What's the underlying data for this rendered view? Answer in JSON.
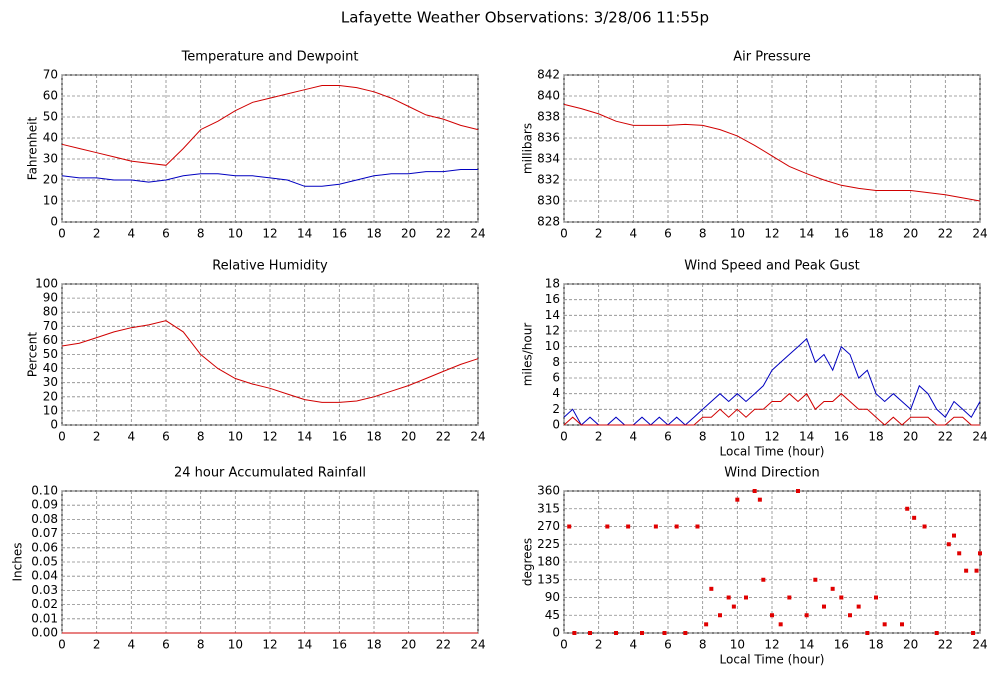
{
  "title": "Lafayette Weather Observations: 3/28/06 11:55p",
  "chart_data": [
    {
      "type": "line",
      "title": "Temperature and Dewpoint",
      "ylabel": "Fahrenheit",
      "x": [
        0,
        1,
        2,
        3,
        4,
        5,
        6,
        7,
        8,
        9,
        10,
        11,
        12,
        13,
        14,
        15,
        16,
        17,
        18,
        19,
        20,
        21,
        22,
        23,
        24
      ],
      "series": [
        {
          "color": "#d00000",
          "values": [
            37,
            35,
            33,
            31,
            29,
            28,
            27,
            35,
            44,
            48,
            53,
            57,
            59,
            61,
            63,
            65,
            65,
            64,
            62,
            59,
            55,
            51,
            49,
            46,
            44
          ]
        },
        {
          "color": "#0000c0",
          "values": [
            22,
            21,
            21,
            20,
            20,
            19,
            20,
            22,
            23,
            23,
            22,
            22,
            21,
            20,
            17,
            17,
            18,
            20,
            22,
            23,
            23,
            24,
            24,
            25,
            25
          ]
        }
      ],
      "xlim": [
        0,
        24
      ],
      "xticks": [
        0,
        2,
        4,
        6,
        8,
        10,
        12,
        14,
        16,
        18,
        20,
        22,
        24
      ],
      "ylim": [
        0,
        70
      ],
      "yticks": [
        0,
        10,
        20,
        30,
        40,
        50,
        60,
        70
      ],
      "grid": true
    },
    {
      "type": "line",
      "title": "Air Pressure",
      "ylabel": "millibars",
      "x": [
        0,
        1,
        2,
        3,
        4,
        5,
        6,
        7,
        8,
        9,
        10,
        11,
        12,
        13,
        14,
        15,
        16,
        17,
        18,
        19,
        20,
        21,
        22,
        23,
        24
      ],
      "series": [
        {
          "color": "#d00000",
          "values": [
            839.2,
            838.8,
            838.3,
            837.6,
            837.2,
            837.2,
            837.2,
            837.3,
            837.2,
            836.8,
            836.2,
            835.3,
            834.3,
            833.3,
            832.6,
            832.0,
            831.5,
            831.2,
            831.0,
            831.0,
            831.0,
            830.8,
            830.6,
            830.3,
            830.0
          ]
        }
      ],
      "xlim": [
        0,
        24
      ],
      "xticks": [
        0,
        2,
        4,
        6,
        8,
        10,
        12,
        14,
        16,
        18,
        20,
        22,
        24
      ],
      "ylim": [
        828,
        842
      ],
      "yticks": [
        828,
        830,
        832,
        834,
        836,
        838,
        840,
        842
      ],
      "grid": true
    },
    {
      "type": "line",
      "title": "Relative Humidity",
      "ylabel": "Percent",
      "x": [
        0,
        1,
        2,
        3,
        4,
        5,
        6,
        7,
        8,
        9,
        10,
        11,
        12,
        13,
        14,
        15,
        16,
        17,
        18,
        19,
        20,
        21,
        22,
        23,
        24
      ],
      "series": [
        {
          "color": "#d00000",
          "values": [
            56,
            58,
            62,
            66,
            69,
            71,
            74,
            66,
            50,
            40,
            33,
            29,
            26,
            22,
            18,
            16,
            16,
            17,
            20,
            24,
            28,
            33,
            38,
            43,
            47
          ]
        }
      ],
      "xlim": [
        0,
        24
      ],
      "xticks": [
        0,
        2,
        4,
        6,
        8,
        10,
        12,
        14,
        16,
        18,
        20,
        22,
        24
      ],
      "ylim": [
        0,
        100
      ],
      "yticks": [
        0,
        10,
        20,
        30,
        40,
        50,
        60,
        70,
        80,
        90,
        100
      ],
      "grid": true
    },
    {
      "type": "line",
      "title": "Wind Speed and Peak Gust",
      "ylabel": "miles/hour",
      "xlabel": "Local Time (hour)",
      "x": [
        0,
        0.5,
        1,
        1.5,
        2,
        2.5,
        3,
        3.5,
        4,
        4.5,
        5,
        5.5,
        6,
        6.5,
        7,
        7.5,
        8,
        8.5,
        9,
        9.5,
        10,
        10.5,
        11,
        11.5,
        12,
        12.5,
        13,
        13.5,
        14,
        14.5,
        15,
        15.5,
        16,
        16.5,
        17,
        17.5,
        18,
        18.5,
        19,
        19.5,
        20,
        20.5,
        21,
        21.5,
        22,
        22.5,
        23,
        23.5,
        24
      ],
      "series": [
        {
          "color": "#0000c0",
          "values": [
            1,
            2,
            0,
            1,
            0,
            0,
            1,
            0,
            0,
            1,
            0,
            1,
            0,
            1,
            0,
            1,
            2,
            3,
            4,
            3,
            4,
            3,
            4,
            5,
            7,
            8,
            9,
            10,
            11,
            8,
            9,
            7,
            10,
            9,
            6,
            7,
            4,
            3,
            4,
            3,
            2,
            5,
            4,
            2,
            1,
            3,
            2,
            1,
            3
          ]
        },
        {
          "color": "#d00000",
          "values": [
            0,
            1,
            0,
            0,
            0,
            0,
            0,
            0,
            0,
            0,
            0,
            0,
            0,
            0,
            0,
            0,
            1,
            1,
            2,
            1,
            2,
            1,
            2,
            2,
            3,
            3,
            4,
            3,
            4,
            2,
            3,
            3,
            4,
            3,
            2,
            2,
            1,
            0,
            1,
            0,
            1,
            1,
            1,
            0,
            0,
            1,
            1,
            0,
            0
          ]
        }
      ],
      "xlim": [
        0,
        24
      ],
      "xticks": [
        0,
        2,
        4,
        6,
        8,
        10,
        12,
        14,
        16,
        18,
        20,
        22,
        24
      ],
      "ylim": [
        0,
        18
      ],
      "yticks": [
        0,
        2,
        4,
        6,
        8,
        10,
        12,
        14,
        16,
        18
      ],
      "grid": true
    },
    {
      "type": "line",
      "title": "24 hour Accumulated Rainfall",
      "ylabel": "Inches",
      "x": [
        0,
        1,
        2,
        3,
        4,
        5,
        6,
        7,
        8,
        9,
        10,
        11,
        12,
        13,
        14,
        15,
        16,
        17,
        18,
        19,
        20,
        21,
        22,
        23,
        24
      ],
      "series": [
        {
          "color": "#d00000",
          "values": [
            0,
            0,
            0,
            0,
            0,
            0,
            0,
            0,
            0,
            0,
            0,
            0,
            0,
            0,
            0,
            0,
            0,
            0,
            0,
            0,
            0,
            0,
            0,
            0,
            0
          ]
        }
      ],
      "xlim": [
        0,
        24
      ],
      "xticks": [
        0,
        2,
        4,
        6,
        8,
        10,
        12,
        14,
        16,
        18,
        20,
        22,
        24
      ],
      "ylim": [
        0,
        0.1
      ],
      "yticks": [
        {
          "value": 0,
          "label": "0.00"
        },
        {
          "value": 0.01,
          "label": "0.01"
        },
        {
          "value": 0.02,
          "label": "0.02"
        },
        {
          "value": 0.03,
          "label": "0.03"
        },
        {
          "value": 0.04,
          "label": "0.04"
        },
        {
          "value": 0.05,
          "label": "0.05"
        },
        {
          "value": 0.06,
          "label": "0.06"
        },
        {
          "value": 0.07,
          "label": "0.07"
        },
        {
          "value": 0.08,
          "label": "0.08"
        },
        {
          "value": 0.09,
          "label": "0.09"
        },
        {
          "value": 0.1,
          "label": "0.10"
        }
      ],
      "grid": true
    },
    {
      "type": "scatter",
      "title": "Wind Direction",
      "ylabel": "degrees",
      "xlabel": "Local Time (hour)",
      "color": "#e00000",
      "x": [
        0.3,
        0.6,
        1.5,
        2.5,
        3,
        3.7,
        4.5,
        5.3,
        5.8,
        6.5,
        7,
        7.7,
        8.2,
        8.5,
        9,
        9.5,
        9.8,
        10,
        10.5,
        11,
        11.3,
        11.5,
        12,
        12.5,
        13,
        13.5,
        14,
        14.5,
        15,
        15.5,
        16,
        16.5,
        17,
        17.5,
        18,
        18.5,
        19.5,
        19.8,
        20.2,
        20.8,
        21.5,
        22.2,
        22.5,
        22.8,
        23.2,
        23.6,
        23.8,
        24
      ],
      "values": [
        270,
        0,
        0,
        270,
        0,
        270,
        0,
        270,
        0,
        270,
        0,
        270,
        22,
        112,
        45,
        90,
        67,
        338,
        90,
        360,
        338,
        135,
        45,
        22,
        90,
        360,
        45,
        135,
        67,
        112,
        90,
        45,
        67,
        0,
        90,
        22,
        22,
        315,
        292,
        270,
        0,
        225,
        247,
        202,
        158,
        0,
        158,
        202
      ],
      "xlim": [
        0,
        24
      ],
      "xticks": [
        0,
        2,
        4,
        6,
        8,
        10,
        12,
        14,
        16,
        18,
        20,
        22,
        24
      ],
      "ylim": [
        0,
        360
      ],
      "yticks": [
        0,
        45,
        90,
        135,
        180,
        225,
        270,
        315,
        360
      ],
      "grid": true
    }
  ]
}
